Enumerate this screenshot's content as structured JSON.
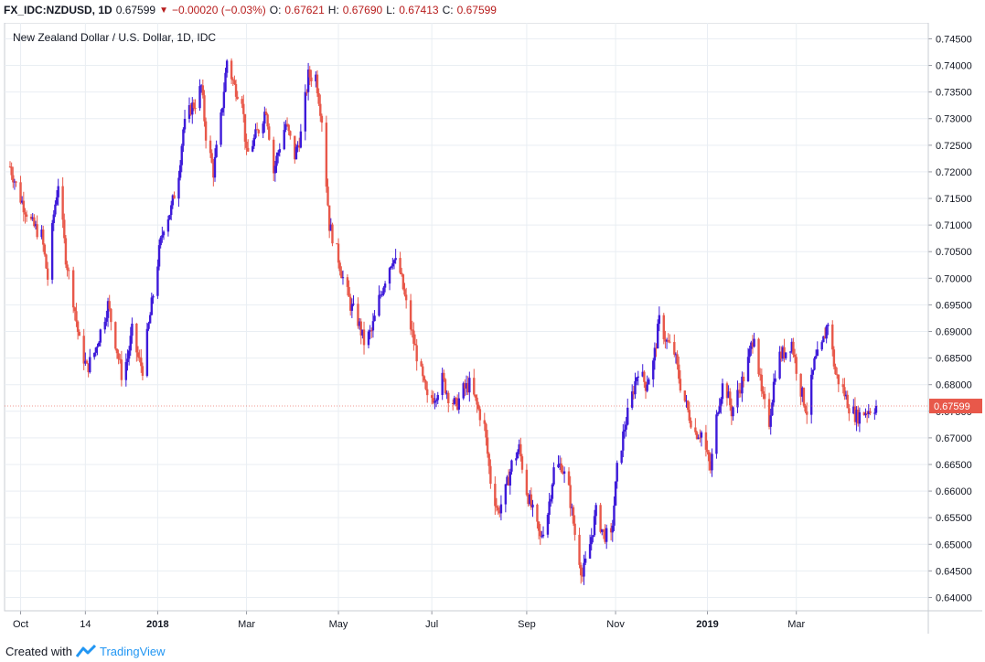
{
  "header": {
    "symbol": "FX_IDC:NZDUSD, 1D",
    "last": "0.67599",
    "change": "−0.00020 (−0.03%)",
    "o_label": "O:",
    "o": "0.67621",
    "h_label": "H:",
    "h": "0.67690",
    "l_label": "L:",
    "l": "0.67413",
    "c_label": "C:",
    "c": "0.67599"
  },
  "footer": {
    "created_with": "Created with",
    "brand": "TradingView"
  },
  "colors": {
    "up": "#3d1ad9",
    "down": "#e8584a",
    "grid": "#e9eef3",
    "price_label_bg": "#e8584a"
  },
  "icons": {
    "change_direction": "triangle-down-icon",
    "brand_logo": "tradingview-logo-icon"
  },
  "chart_data": {
    "type": "candlestick",
    "title": "New Zealand Dollar / U.S. Dollar, 1D, IDC",
    "last_price_label": "0.67599",
    "ylim": [
      0.6375,
      0.748
    ],
    "y_ticks": [
      "0.74500",
      "0.74000",
      "0.73500",
      "0.73000",
      "0.72500",
      "0.72000",
      "0.71500",
      "0.71000",
      "0.70500",
      "0.70000",
      "0.69500",
      "0.69000",
      "0.68500",
      "0.68000",
      "0.67500",
      "0.67000",
      "0.66500",
      "0.66000",
      "0.65500",
      "0.65000",
      "0.64500",
      "0.64000"
    ],
    "x_ticks": [
      {
        "label": "Oct",
        "bold": false,
        "date": "2017-10-02"
      },
      {
        "label": "14",
        "bold": false,
        "date": "2017-11-14"
      },
      {
        "label": "2018",
        "bold": true,
        "date": "2018-01-01"
      },
      {
        "label": "Mar",
        "bold": false,
        "date": "2018-03-01"
      },
      {
        "label": "May",
        "bold": false,
        "date": "2018-05-01"
      },
      {
        "label": "Jul",
        "bold": false,
        "date": "2018-07-02"
      },
      {
        "label": "Sep",
        "bold": false,
        "date": "2018-09-03"
      },
      {
        "label": "Nov",
        "bold": false,
        "date": "2018-11-01"
      },
      {
        "label": "2019",
        "bold": true,
        "date": "2019-01-01"
      },
      {
        "label": "Mar",
        "bold": false,
        "date": "2019-03-01"
      }
    ],
    "x_range": [
      "2017-09-25",
      "2019-05-10"
    ],
    "closes": [
      {
        "date": "2017-09-25",
        "close": 0.721
      },
      {
        "date": "2017-10-02",
        "close": 0.715
      },
      {
        "date": "2017-10-10",
        "close": 0.71
      },
      {
        "date": "2017-10-16",
        "close": 0.708
      },
      {
        "date": "2017-10-20",
        "close": 0.7
      },
      {
        "date": "2017-10-24",
        "close": 0.712
      },
      {
        "date": "2017-10-27",
        "close": 0.718
      },
      {
        "date": "2017-11-01",
        "close": 0.704
      },
      {
        "date": "2017-11-06",
        "close": 0.696
      },
      {
        "date": "2017-11-10",
        "close": 0.688
      },
      {
        "date": "2017-11-15",
        "close": 0.683
      },
      {
        "date": "2017-11-20",
        "close": 0.686
      },
      {
        "date": "2017-11-24",
        "close": 0.69
      },
      {
        "date": "2017-11-29",
        "close": 0.695
      },
      {
        "date": "2017-12-04",
        "close": 0.688
      },
      {
        "date": "2017-12-08",
        "close": 0.682
      },
      {
        "date": "2017-12-12",
        "close": 0.685
      },
      {
        "date": "2017-12-15",
        "close": 0.69
      },
      {
        "date": "2017-12-19",
        "close": 0.685
      },
      {
        "date": "2017-12-22",
        "close": 0.683
      },
      {
        "date": "2017-12-27",
        "close": 0.693
      },
      {
        "date": "2018-01-02",
        "close": 0.705
      },
      {
        "date": "2018-01-05",
        "close": 0.71
      },
      {
        "date": "2018-01-10",
        "close": 0.713
      },
      {
        "date": "2018-01-15",
        "close": 0.72
      },
      {
        "date": "2018-01-18",
        "close": 0.728
      },
      {
        "date": "2018-01-23",
        "close": 0.732
      },
      {
        "date": "2018-01-26",
        "close": 0.733
      },
      {
        "date": "2018-01-30",
        "close": 0.736
      },
      {
        "date": "2018-02-02",
        "close": 0.727
      },
      {
        "date": "2018-02-07",
        "close": 0.72
      },
      {
        "date": "2018-02-12",
        "close": 0.73
      },
      {
        "date": "2018-02-16",
        "close": 0.741
      },
      {
        "date": "2018-02-21",
        "close": 0.736
      },
      {
        "date": "2018-02-26",
        "close": 0.734
      },
      {
        "date": "2018-03-01",
        "close": 0.723
      },
      {
        "date": "2018-03-06",
        "close": 0.726
      },
      {
        "date": "2018-03-09",
        "close": 0.728
      },
      {
        "date": "2018-03-14",
        "close": 0.732
      },
      {
        "date": "2018-03-19",
        "close": 0.72
      },
      {
        "date": "2018-03-23",
        "close": 0.725
      },
      {
        "date": "2018-03-27",
        "close": 0.729
      },
      {
        "date": "2018-04-02",
        "close": 0.723
      },
      {
        "date": "2018-04-06",
        "close": 0.727
      },
      {
        "date": "2018-04-11",
        "close": 0.738
      },
      {
        "date": "2018-04-16",
        "close": 0.738
      },
      {
        "date": "2018-04-20",
        "close": 0.73
      },
      {
        "date": "2018-04-25",
        "close": 0.71
      },
      {
        "date": "2018-04-30",
        "close": 0.705
      },
      {
        "date": "2018-05-04",
        "close": 0.7
      },
      {
        "date": "2018-05-09",
        "close": 0.695
      },
      {
        "date": "2018-05-14",
        "close": 0.692
      },
      {
        "date": "2018-05-18",
        "close": 0.688
      },
      {
        "date": "2018-05-23",
        "close": 0.69
      },
      {
        "date": "2018-05-28",
        "close": 0.696
      },
      {
        "date": "2018-06-01",
        "close": 0.7
      },
      {
        "date": "2018-06-06",
        "close": 0.704
      },
      {
        "date": "2018-06-11",
        "close": 0.701
      },
      {
        "date": "2018-06-15",
        "close": 0.695
      },
      {
        "date": "2018-06-20",
        "close": 0.688
      },
      {
        "date": "2018-06-25",
        "close": 0.682
      },
      {
        "date": "2018-06-29",
        "close": 0.677
      },
      {
        "date": "2018-07-04",
        "close": 0.678
      },
      {
        "date": "2018-07-09",
        "close": 0.681
      },
      {
        "date": "2018-07-13",
        "close": 0.678
      },
      {
        "date": "2018-07-18",
        "close": 0.676
      },
      {
        "date": "2018-07-23",
        "close": 0.679
      },
      {
        "date": "2018-07-27",
        "close": 0.68
      },
      {
        "date": "2018-08-01",
        "close": 0.676
      },
      {
        "date": "2018-08-06",
        "close": 0.672
      },
      {
        "date": "2018-08-10",
        "close": 0.662
      },
      {
        "date": "2018-08-15",
        "close": 0.656
      },
      {
        "date": "2018-08-20",
        "close": 0.66
      },
      {
        "date": "2018-08-24",
        "close": 0.665
      },
      {
        "date": "2018-08-29",
        "close": 0.668
      },
      {
        "date": "2018-09-03",
        "close": 0.66
      },
      {
        "date": "2018-09-07",
        "close": 0.656
      },
      {
        "date": "2018-09-12",
        "close": 0.651
      },
      {
        "date": "2018-09-17",
        "close": 0.656
      },
      {
        "date": "2018-09-21",
        "close": 0.664
      },
      {
        "date": "2018-09-26",
        "close": 0.665
      },
      {
        "date": "2018-10-01",
        "close": 0.66
      },
      {
        "date": "2018-10-05",
        "close": 0.652
      },
      {
        "date": "2018-10-10",
        "close": 0.644
      },
      {
        "date": "2018-10-15",
        "close": 0.65
      },
      {
        "date": "2018-10-19",
        "close": 0.656
      },
      {
        "date": "2018-10-24",
        "close": 0.652
      },
      {
        "date": "2018-10-29",
        "close": 0.651
      },
      {
        "date": "2018-11-02",
        "close": 0.664
      },
      {
        "date": "2018-11-07",
        "close": 0.672
      },
      {
        "date": "2018-11-12",
        "close": 0.678
      },
      {
        "date": "2018-11-16",
        "close": 0.683
      },
      {
        "date": "2018-11-21",
        "close": 0.68
      },
      {
        "date": "2018-11-26",
        "close": 0.684
      },
      {
        "date": "2018-11-30",
        "close": 0.692
      },
      {
        "date": "2018-12-05",
        "close": 0.688
      },
      {
        "date": "2018-12-10",
        "close": 0.686
      },
      {
        "date": "2018-12-14",
        "close": 0.68
      },
      {
        "date": "2018-12-19",
        "close": 0.675
      },
      {
        "date": "2018-12-24",
        "close": 0.671
      },
      {
        "date": "2018-12-28",
        "close": 0.671
      },
      {
        "date": "2019-01-03",
        "close": 0.664
      },
      {
        "date": "2019-01-08",
        "close": 0.676
      },
      {
        "date": "2019-01-12",
        "close": 0.681
      },
      {
        "date": "2019-01-17",
        "close": 0.675
      },
      {
        "date": "2019-01-22",
        "close": 0.679
      },
      {
        "date": "2019-01-27",
        "close": 0.683
      },
      {
        "date": "2019-02-01",
        "close": 0.69
      },
      {
        "date": "2019-02-06",
        "close": 0.678
      },
      {
        "date": "2019-02-11",
        "close": 0.673
      },
      {
        "date": "2019-02-16",
        "close": 0.685
      },
      {
        "date": "2019-02-21",
        "close": 0.686
      },
      {
        "date": "2019-02-26",
        "close": 0.688
      },
      {
        "date": "2019-03-03",
        "close": 0.68
      },
      {
        "date": "2019-03-08",
        "close": 0.675
      },
      {
        "date": "2019-03-13",
        "close": 0.684
      },
      {
        "date": "2019-03-18",
        "close": 0.687
      },
      {
        "date": "2019-03-22",
        "close": 0.692
      },
      {
        "date": "2019-03-27",
        "close": 0.682
      },
      {
        "date": "2019-04-01",
        "close": 0.679
      },
      {
        "date": "2019-04-05",
        "close": 0.676
      },
      {
        "date": "2019-04-10",
        "close": 0.674
      },
      {
        "date": "2019-04-16",
        "close": 0.675
      },
      {
        "date": "2019-04-23",
        "close": 0.676
      }
    ]
  }
}
